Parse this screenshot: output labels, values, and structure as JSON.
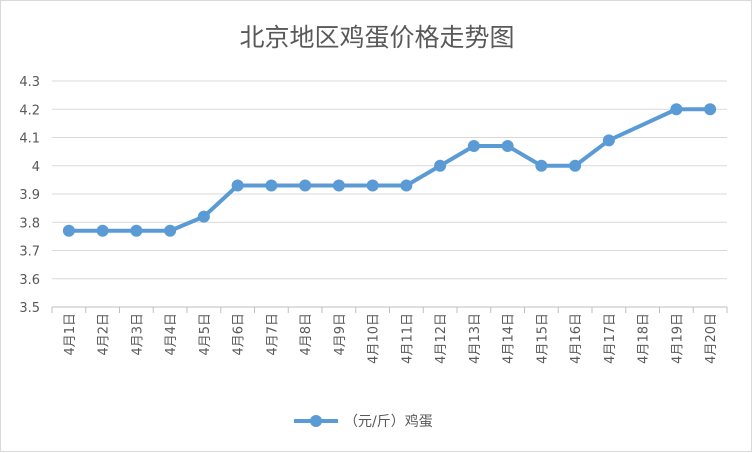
{
  "chart_data": {
    "type": "line",
    "title": "北京地区鸡蛋价格走势图",
    "xlabel": "",
    "ylabel": "",
    "categories": [
      "4月1日",
      "4月2日",
      "4月3日",
      "4月4日",
      "4月5日",
      "4月6日",
      "4月7日",
      "4月8日",
      "4月9日",
      "4月10日",
      "4月11日",
      "4月12日",
      "4月13日",
      "4月14日",
      "4月15日",
      "4月16日",
      "4月17日",
      "4月18日",
      "4月19日",
      "4月20日"
    ],
    "series": [
      {
        "name": "（元/斤）鸡蛋",
        "color": "#5b9bd5",
        "values": [
          3.77,
          3.77,
          3.77,
          3.77,
          3.82,
          3.93,
          3.93,
          3.93,
          3.93,
          3.93,
          3.93,
          4.0,
          4.07,
          4.07,
          4.0,
          4.0,
          4.09,
          null,
          4.2,
          4.2
        ]
      }
    ],
    "ylim": [
      3.5,
      4.3
    ],
    "yticks": [
      "3.5",
      "3.6",
      "3.7",
      "3.8",
      "3.9",
      "4",
      "4.1",
      "4.2",
      "4.3"
    ],
    "grid": true,
    "legend": "bottom"
  }
}
